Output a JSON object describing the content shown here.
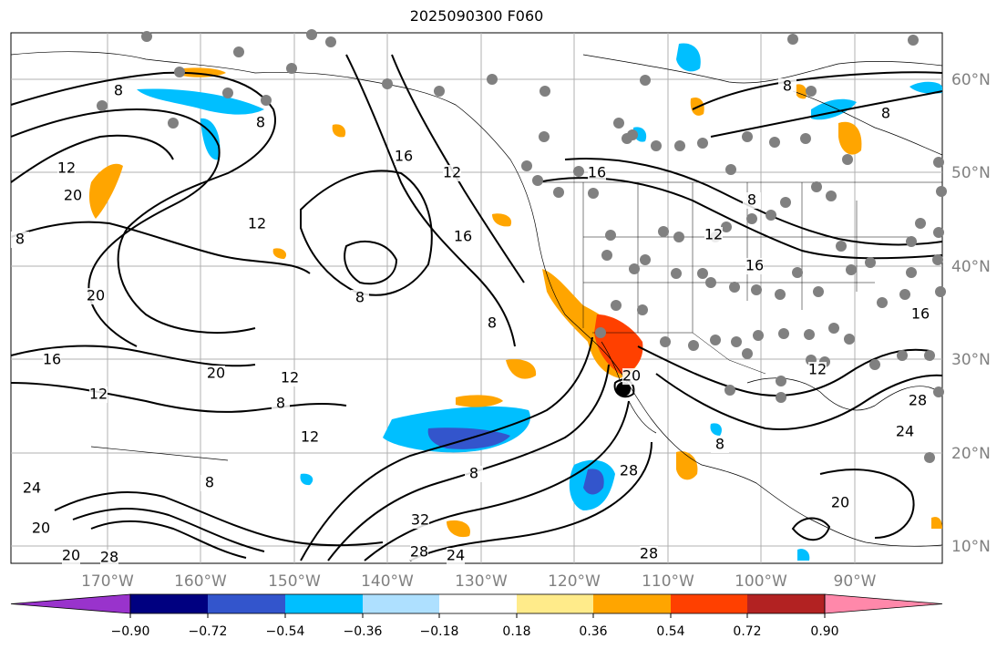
{
  "title": "2025090300 F060",
  "lon_labels": [
    "170°W",
    "160°W",
    "150°W",
    "140°W",
    "130°W",
    "120°W",
    "110°W",
    "100°W",
    "90°W"
  ],
  "lat_labels": [
    "60°N",
    "50°N",
    "40°N",
    "30°N",
    "20°N",
    "10°N"
  ],
  "colorbar": {
    "tick_labels": [
      "−0.90",
      "−0.72",
      "−0.54",
      "−0.36",
      "−0.18",
      "0.18",
      "0.36",
      "0.54",
      "0.72",
      "0.90"
    ],
    "colors": [
      "#9933cc",
      "#000080",
      "#3355cc",
      "#00bfff",
      "#aee0ff",
      "#ffffff",
      "#ffeb8a",
      "#ffa500",
      "#ff4000",
      "#b22222",
      "#ff88aa"
    ]
  },
  "contour_labels": [
    "8",
    "12",
    "16",
    "20",
    "24",
    "28",
    "32"
  ],
  "colors": {
    "contour": "#000000",
    "grid": "#b0b0b0",
    "station": "#808080",
    "axis_label": "#808080"
  }
}
